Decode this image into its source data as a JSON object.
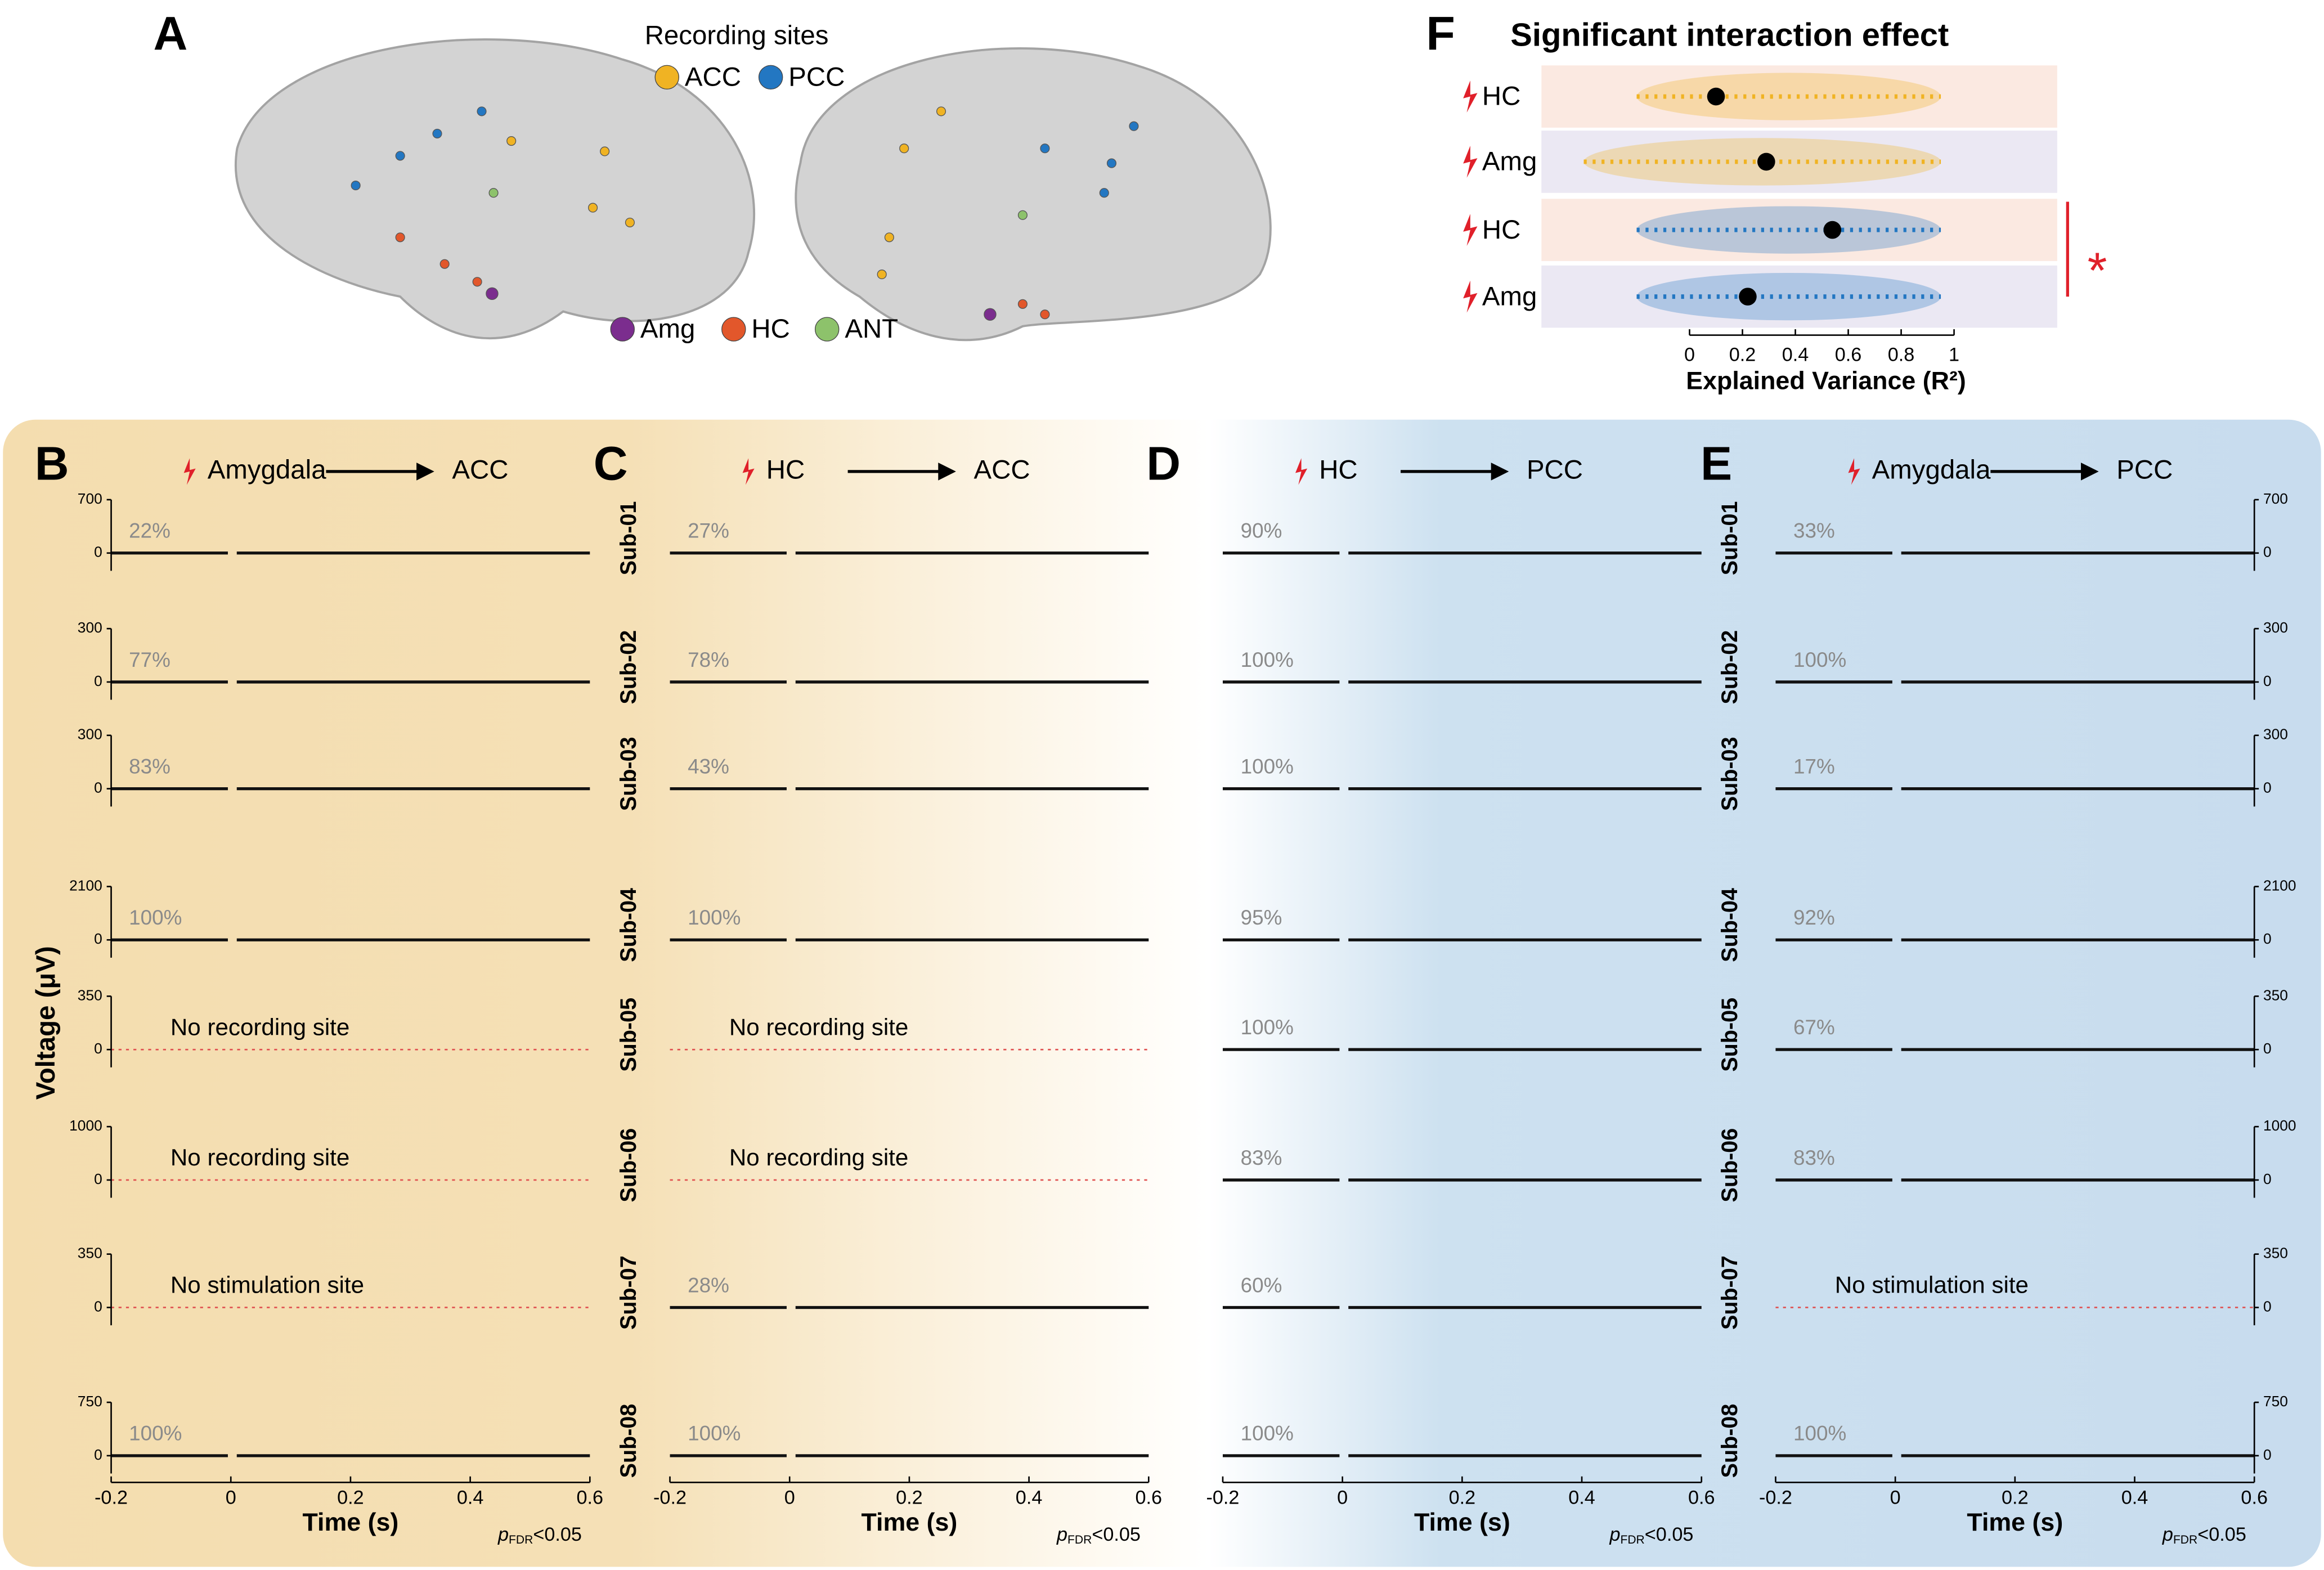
{
  "panel_a": {
    "label": "A",
    "legend_title": "Recording sites",
    "sites": [
      {
        "name": "ACC",
        "color": "#f0b323"
      },
      {
        "name": "PCC",
        "color": "#2377c2"
      },
      {
        "name": "Amg",
        "color": "#7b2d8e"
      },
      {
        "name": "HC",
        "color": "#e2572b"
      },
      {
        "name": "ANT",
        "color": "#8dc26b"
      }
    ]
  },
  "panel_f": {
    "label": "F",
    "chart_data": {
      "type": "dot",
      "title": "Significant interaction effect",
      "x_label": "Explained Variance (R²)",
      "categories": [
        "HC",
        "Amg",
        "HC",
        "Amg"
      ],
      "colors": [
        "#f0b323",
        "#f0b323",
        "#2377c2",
        "#2377c2"
      ],
      "values": [
        0.1,
        0.29,
        0.54,
        0.22
      ],
      "ranges": [
        [
          -0.2,
          0.95
        ],
        [
          -0.4,
          0.95
        ],
        [
          -0.2,
          0.95
        ],
        [
          -0.2,
          0.95
        ]
      ],
      "xlim": [
        -0.56,
        1.39
      ],
      "xticks": [
        0,
        0.2,
        0.4,
        0.6,
        0.8,
        1
      ],
      "significance": "*"
    }
  },
  "subjects": [
    {
      "label": "Sub-01",
      "yticks": [
        0,
        700
      ]
    },
    {
      "label": "Sub-02",
      "yticks": [
        0,
        300
      ]
    },
    {
      "label": "Sub-03",
      "yticks": [
        0,
        300
      ]
    },
    {
      "label": "Sub-04",
      "yticks": [
        0,
        2100
      ]
    },
    {
      "label": "Sub-05",
      "yticks": [
        0,
        350
      ]
    },
    {
      "label": "Sub-06",
      "yticks": [
        0,
        1000
      ]
    },
    {
      "label": "Sub-07",
      "yticks": [
        0,
        350
      ]
    },
    {
      "label": "Sub-08",
      "yticks": [
        0,
        750
      ]
    }
  ],
  "panels": [
    {
      "label": "B",
      "source": "Amygdala",
      "target": "ACC",
      "rows": [
        {
          "percent": "22%"
        },
        {
          "percent": "77%"
        },
        {
          "percent": "83%"
        },
        {
          "percent": "100%"
        },
        {
          "note": "No recording site"
        },
        {
          "note": "No recording site"
        },
        {
          "note": "No stimulation site"
        },
        {
          "percent": "100%"
        }
      ]
    },
    {
      "label": "C",
      "source": "HC",
      "target": "ACC",
      "rows": [
        {
          "percent": "27%"
        },
        {
          "percent": "78%"
        },
        {
          "percent": "43%"
        },
        {
          "percent": "100%"
        },
        {
          "note": "No recording site"
        },
        {
          "note": "No recording site"
        },
        {
          "percent": "28%"
        },
        {
          "percent": "100%"
        }
      ]
    },
    {
      "label": "D",
      "source": "HC",
      "target": "PCC",
      "rows": [
        {
          "percent": "90%"
        },
        {
          "percent": "100%"
        },
        {
          "percent": "100%"
        },
        {
          "percent": "95%"
        },
        {
          "percent": "100%"
        },
        {
          "percent": "83%"
        },
        {
          "percent": "60%"
        },
        {
          "percent": "100%"
        }
      ]
    },
    {
      "label": "E",
      "source": "Amygdala",
      "target": "PCC",
      "rows": [
        {
          "percent": "33%"
        },
        {
          "percent": "100%"
        },
        {
          "percent": "17%"
        },
        {
          "percent": "92%"
        },
        {
          "percent": "67%"
        },
        {
          "percent": "83%"
        },
        {
          "note": "No stimulation site"
        },
        {
          "percent": "100%"
        }
      ]
    }
  ],
  "y_label": "Voltage (μV)",
  "x_label": "Time (s)",
  "xlim": [
    -0.2,
    0.6
  ],
  "xticks": [
    -0.2,
    0,
    0.2,
    0.4,
    0.6
  ],
  "p_label": {
    "p": "p",
    "sub": "FDR",
    "rest": "<0.05"
  }
}
